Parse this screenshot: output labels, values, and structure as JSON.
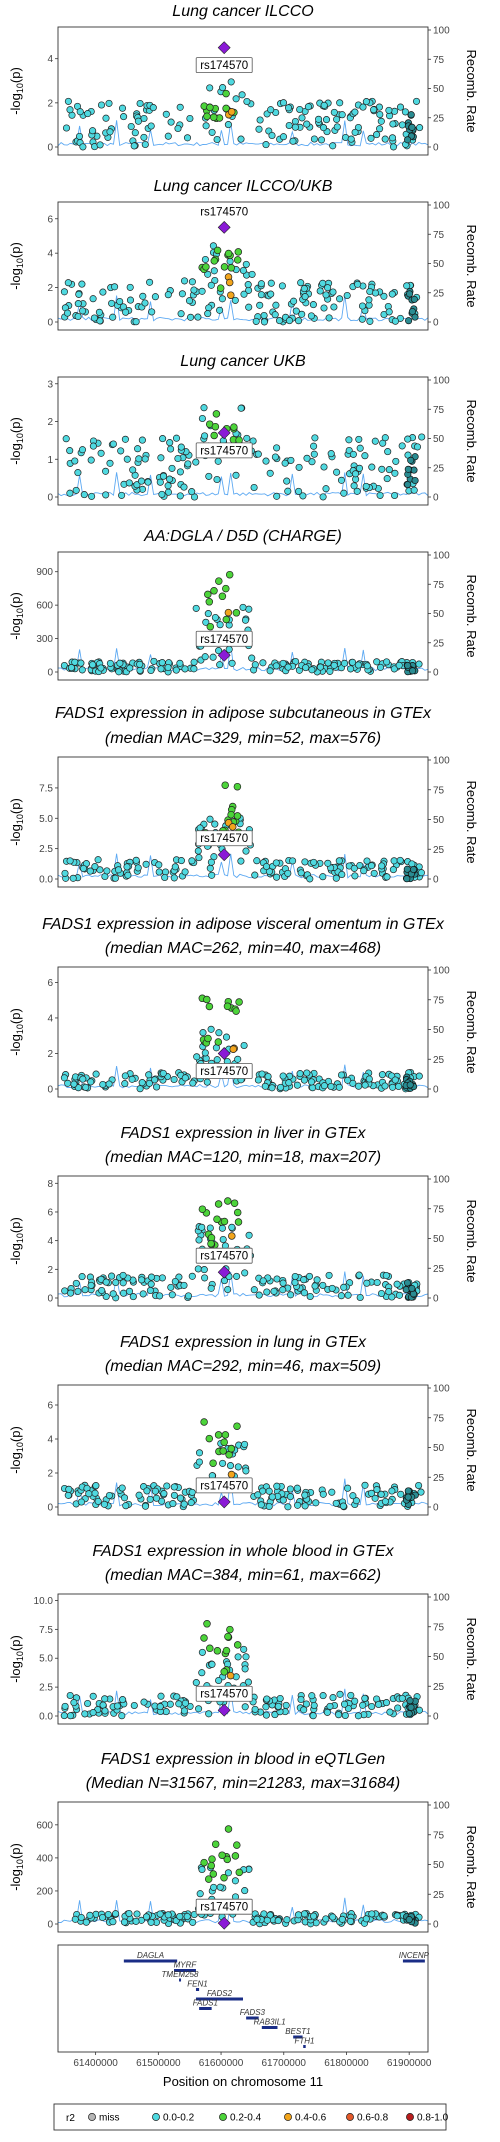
{
  "chart_data": {
    "type": "scatter",
    "lead_snp": "rs174570",
    "x_label": "Position on chromosome 11",
    "x_ticks": [
      "61400000",
      "61500000",
      "61600000",
      "61700000",
      "61800000",
      "61900000"
    ],
    "xlim": [
      61340000,
      61930000
    ],
    "lead_position": 61605000,
    "y_label": "-log10(p)",
    "y2_label": "Recomb. Rate",
    "y2_ticks": [
      "0",
      "25",
      "50",
      "75",
      "100"
    ],
    "panels": [
      {
        "title": "Lung cancer ILCCO",
        "title2": "",
        "ymax": 5.3,
        "yticks": [
          0,
          2,
          4
        ],
        "ytick_labels": [
          "0",
          "2",
          "4"
        ],
        "lead_y": 4.5,
        "peak": 2.6,
        "bg": 1.3,
        "green_n": 12,
        "orange_n": 2,
        "label_pos": "below"
      },
      {
        "title": "Lung cancer ILCCO/UKB",
        "title2": "",
        "ymax": 6.8,
        "yticks": [
          0,
          2,
          4,
          6
        ],
        "ytick_labels": [
          "0",
          "2",
          "4",
          "6"
        ],
        "lead_y": 5.5,
        "peak": 4.3,
        "bg": 1.5,
        "green_n": 14,
        "orange_n": 3,
        "label_pos": "above"
      },
      {
        "title": "Lung cancer UKB",
        "title2": "",
        "ymax": 3.1,
        "yticks": [
          0,
          1,
          2,
          3
        ],
        "ytick_labels": [
          "0",
          "1",
          "2",
          "3"
        ],
        "lead_y": 1.7,
        "peak": 2.3,
        "bg": 1.0,
        "green_n": 12,
        "orange_n": 1,
        "label_pos": "below"
      },
      {
        "title": "AA:DGLA / D5D (CHARGE)",
        "title2": "",
        "ymax": 1050,
        "yticks": [
          0,
          300,
          600,
          900
        ],
        "ytick_labels": [
          "0",
          "300",
          "600",
          "900"
        ],
        "lead_y": 150,
        "peak": 880,
        "bg": 60,
        "green_n": 10,
        "orange_n": 2,
        "label_pos": "above"
      },
      {
        "title": "FADS1 expression in adipose subcutaneous in GTEx",
        "title2": "(median MAC=329, min=52, max=576)",
        "ymax": 9.8,
        "yticks": [
          0,
          2.5,
          5,
          7.5
        ],
        "ytick_labels": [
          "0.0",
          "2.5",
          "5.0",
          "7.5"
        ],
        "lead_y": 2.0,
        "peak": 7.8,
        "bg": 1.0,
        "green_n": 14,
        "orange_n": 2,
        "label_pos": "above"
      },
      {
        "title": "FADS1 expression in adipose visceral omentum in GTEx",
        "title2": "(median MAC=262, min=40, max=468)",
        "ymax": 6.7,
        "yticks": [
          0,
          2,
          4,
          6
        ],
        "ytick_labels": [
          "0",
          "2",
          "4",
          "6"
        ],
        "lead_y": 2.0,
        "peak": 5.2,
        "bg": 0.6,
        "green_n": 14,
        "orange_n": 2,
        "label_pos": "below"
      },
      {
        "title": "FADS1 expression in liver in GTEx",
        "title2": "(median MAC=120, min=18, max=207)",
        "ymax": 8.3,
        "yticks": [
          0,
          2,
          4,
          6,
          8
        ],
        "ytick_labels": [
          "0",
          "2",
          "4",
          "6",
          "8"
        ],
        "lead_y": 1.8,
        "peak": 6.8,
        "bg": 1.0,
        "green_n": 16,
        "orange_n": 2,
        "label_pos": "above"
      },
      {
        "title": "FADS1 expression in lung in GTEx",
        "title2": "(median MAC=292, min=46, max=509)",
        "ymax": 7.0,
        "yticks": [
          0,
          2,
          4,
          6
        ],
        "ytick_labels": [
          "0",
          "2",
          "4",
          "6"
        ],
        "lead_y": 0.3,
        "peak": 5.3,
        "bg": 0.8,
        "green_n": 12,
        "orange_n": 1,
        "label_pos": "above"
      },
      {
        "title": "FADS1 expression in whole blood in GTEx",
        "title2": "(median MAC=384, min=61, max=662)",
        "ymax": 10.3,
        "yticks": [
          0,
          2.5,
          5,
          7.5,
          10
        ],
        "ytick_labels": [
          "0.0",
          "2.5",
          "5.0",
          "7.5",
          "10.0"
        ],
        "lead_y": 0.5,
        "peak": 8.0,
        "bg": 1.2,
        "green_n": 12,
        "orange_n": 1,
        "label_pos": "above"
      },
      {
        "title": "FADS1 expression in blood in eQTLGen",
        "title2": "(Median N=31567, min=21283, max=31684)",
        "ymax": 720,
        "yticks": [
          0,
          200,
          400,
          600
        ],
        "ytick_labels": [
          "0",
          "200",
          "400",
          "600"
        ],
        "lead_y": 5,
        "peak": 590,
        "bg": 40,
        "green_n": 14,
        "orange_n": 0,
        "label_pos": "above"
      }
    ],
    "genes": [
      {
        "name": "DAGLA",
        "start": 61445000,
        "end": 61530000,
        "row": 0
      },
      {
        "name": "MYRF",
        "start": 61525000,
        "end": 61560000,
        "row": 1
      },
      {
        "name": "TMEM258",
        "start": 61533000,
        "end": 61536000,
        "row": 2
      },
      {
        "name": "FEN1",
        "start": 61560000,
        "end": 61565000,
        "row": 3
      },
      {
        "name": "FADS2",
        "start": 61560000,
        "end": 61635000,
        "row": 4
      },
      {
        "name": "FADS1",
        "start": 61565000,
        "end": 61585000,
        "row": 5
      },
      {
        "name": "FADS3",
        "start": 61640000,
        "end": 61660000,
        "row": 6
      },
      {
        "name": "RAB3IL1",
        "start": 61665000,
        "end": 61690000,
        "row": 7
      },
      {
        "name": "BEST1",
        "start": 61715000,
        "end": 61730000,
        "row": 8
      },
      {
        "name": "FTH1",
        "start": 61731000,
        "end": 61735000,
        "row": 9
      },
      {
        "name": "INCENP",
        "start": 61890000,
        "end": 61925000,
        "row": 0
      }
    ],
    "legend": {
      "title": "r2",
      "items": [
        {
          "label": "miss",
          "color": "#b5b5b5"
        },
        {
          "label": "0.0-0.2",
          "color": "#4fd9e0"
        },
        {
          "label": "0.2-0.4",
          "color": "#4cd43a"
        },
        {
          "label": "0.4-0.6",
          "color": "#f2a51c"
        },
        {
          "label": "0.6-0.8",
          "color": "#e3592a"
        },
        {
          "label": "0.8-1.0",
          "color": "#b81d1d"
        }
      ]
    },
    "colors": {
      "low": "#4fd9e0",
      "mid": "#4cd43a",
      "high": "#f2a51c",
      "lead": "#8a1ad6",
      "recomb": "#5da9f2",
      "gene": "#1a2d86"
    }
  }
}
